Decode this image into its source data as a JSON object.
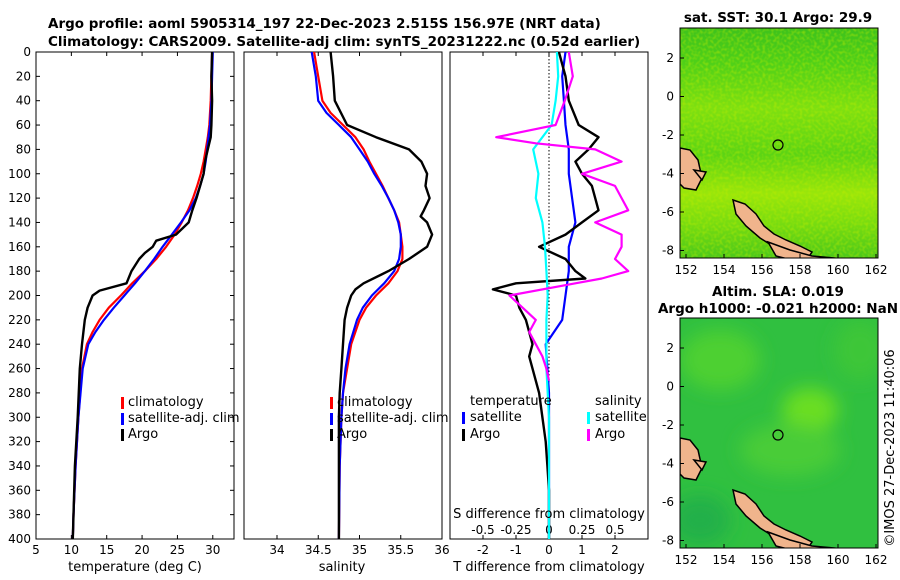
{
  "header": {
    "title_line1": "Argo profile: aoml 5905314_197 22-Dec-2023 2.515S 156.97E (NRT data)",
    "title_line2": "Climatology: CARS2009. Satellite-adj clim: synTS_20231222.nc (0.52d earlier)"
  },
  "colors": {
    "climatology": "#ff0000",
    "satellite": "#0000ff",
    "argo": "#000000",
    "sal_satellite": "#00ffff",
    "sal_argo": "#ff00ff"
  },
  "chart_data": [
    {
      "type": "line",
      "name": "temperature",
      "xlabel": "temperature (deg C)",
      "ylabel": "",
      "xlim": [
        5,
        33
      ],
      "ylim": [
        400,
        0
      ],
      "xticks": [
        "5",
        "10",
        "15",
        "20",
        "25",
        "30"
      ],
      "xtick_values": [
        5,
        10,
        15,
        20,
        25,
        30
      ],
      "yticks": [
        "0",
        "20",
        "40",
        "60",
        "80",
        "100",
        "120",
        "140",
        "160",
        "180",
        "200",
        "220",
        "240",
        "260",
        "280",
        "300",
        "320",
        "340",
        "360",
        "380",
        "400"
      ],
      "ytick_values": [
        0,
        20,
        40,
        60,
        80,
        100,
        120,
        140,
        160,
        180,
        200,
        220,
        240,
        260,
        280,
        300,
        320,
        340,
        360,
        380,
        400
      ],
      "legend": [
        "climatology",
        "satellite-adj. clim",
        "Argo"
      ],
      "series": [
        {
          "name": "climatology",
          "depth": [
            0,
            20,
            40,
            60,
            70,
            80,
            90,
            100,
            110,
            120,
            130,
            140,
            150,
            160,
            170,
            180,
            190,
            200,
            210,
            220,
            230,
            240,
            260,
            300,
            340,
            380,
            400
          ],
          "values": [
            29.9,
            29.8,
            29.7,
            29.5,
            29.3,
            29.0,
            28.7,
            28.3,
            27.8,
            27.2,
            26.5,
            25.6,
            24.6,
            23.4,
            22.0,
            20.4,
            18.6,
            17.0,
            15.3,
            14.0,
            13.0,
            12.2,
            11.5,
            11.0,
            10.6,
            10.3,
            10.2
          ]
        },
        {
          "name": "satellite-adj. clim",
          "depth": [
            0,
            20,
            40,
            60,
            70,
            80,
            90,
            100,
            110,
            120,
            130,
            140,
            150,
            160,
            170,
            180,
            190,
            200,
            210,
            220,
            230,
            240,
            260,
            300,
            340,
            380,
            400
          ],
          "values": [
            30.0,
            29.9,
            29.8,
            29.6,
            29.4,
            29.2,
            29.0,
            28.7,
            28.2,
            27.6,
            26.7,
            25.5,
            24.2,
            22.9,
            21.7,
            20.4,
            19.0,
            17.5,
            16.0,
            14.6,
            13.4,
            12.4,
            11.6,
            11.0,
            10.6,
            10.3,
            10.2
          ]
        },
        {
          "name": "Argo",
          "depth": [
            0,
            20,
            40,
            60,
            70,
            80,
            90,
            100,
            110,
            120,
            130,
            140,
            150,
            155,
            160,
            165,
            170,
            180,
            190,
            196,
            200,
            210,
            220,
            230,
            240,
            260,
            300,
            340,
            380,
            400
          ],
          "values": [
            29.9,
            29.8,
            29.9,
            29.8,
            29.7,
            29.3,
            28.9,
            28.7,
            28.2,
            27.7,
            27.1,
            26.6,
            24.8,
            22.0,
            21.5,
            20.4,
            19.6,
            18.5,
            17.8,
            14.0,
            13.0,
            12.3,
            11.9,
            11.7,
            11.5,
            11.2,
            10.9,
            10.5,
            10.3,
            10.2
          ]
        }
      ]
    },
    {
      "type": "line",
      "name": "salinity",
      "xlabel": "salinity",
      "xlim": [
        33.6,
        36.0
      ],
      "ylim": [
        400,
        0
      ],
      "xticks": [
        "34",
        "34.5",
        "35",
        "35.5",
        "36"
      ],
      "xtick_values": [
        34,
        34.5,
        35,
        35.5,
        36
      ],
      "legend": [
        "climatology",
        "satellite-adj. clim",
        "Argo"
      ],
      "series": [
        {
          "name": "climatology",
          "depth": [
            0,
            20,
            40,
            50,
            60,
            70,
            80,
            90,
            100,
            110,
            120,
            130,
            140,
            150,
            160,
            170,
            180,
            190,
            200,
            210,
            220,
            240,
            260,
            280,
            300,
            340,
            400
          ],
          "values": [
            34.45,
            34.5,
            34.55,
            34.65,
            34.8,
            34.95,
            35.05,
            35.12,
            35.2,
            35.28,
            35.35,
            35.42,
            35.48,
            35.5,
            35.52,
            35.52,
            35.46,
            35.35,
            35.2,
            35.08,
            35.0,
            34.9,
            34.85,
            34.8,
            34.78,
            34.76,
            34.75
          ]
        },
        {
          "name": "satellite-adj. clim",
          "depth": [
            0,
            20,
            40,
            50,
            60,
            70,
            80,
            90,
            100,
            110,
            120,
            130,
            140,
            150,
            160,
            170,
            180,
            190,
            200,
            210,
            220,
            240,
            260,
            280,
            300,
            340,
            400
          ],
          "values": [
            34.42,
            34.47,
            34.5,
            34.6,
            34.75,
            34.9,
            35.0,
            35.1,
            35.18,
            35.27,
            35.35,
            35.42,
            35.47,
            35.5,
            35.5,
            35.48,
            35.42,
            35.3,
            35.15,
            35.04,
            34.97,
            34.88,
            34.83,
            34.8,
            34.78,
            34.76,
            34.75
          ]
        },
        {
          "name": "Argo",
          "depth": [
            0,
            20,
            40,
            60,
            70,
            80,
            90,
            100,
            110,
            120,
            130,
            135,
            140,
            145,
            150,
            160,
            170,
            180,
            190,
            195,
            200,
            210,
            220,
            240,
            260,
            280,
            300,
            340,
            380,
            400
          ],
          "values": [
            34.65,
            34.68,
            34.7,
            34.85,
            35.2,
            35.6,
            35.75,
            35.82,
            35.8,
            35.85,
            35.78,
            35.74,
            35.82,
            35.85,
            35.88,
            35.82,
            35.6,
            35.35,
            35.05,
            34.95,
            34.9,
            34.85,
            34.82,
            34.8,
            34.78,
            34.76,
            34.75,
            34.75,
            34.75,
            34.75
          ]
        }
      ]
    },
    {
      "type": "line",
      "name": "difference",
      "xlabel": "T difference from climatology",
      "xlabel2": "S difference from climatology",
      "xlim": [
        -3,
        3
      ],
      "ylim": [
        400,
        0
      ],
      "xticks": [
        "-2",
        "-1",
        "0",
        "1",
        "2"
      ],
      "xtick_values": [
        -2,
        -1,
        0,
        1,
        2
      ],
      "xticks2": [
        "-0.5",
        "-0.25",
        "0",
        "0.25",
        "0.5"
      ],
      "xtick2_values": [
        -0.5,
        -0.25,
        0,
        0.25,
        0.5
      ],
      "legend_left_title": "temperature",
      "legend_left": [
        "satellite",
        "Argo"
      ],
      "legend_right_title": "salinity",
      "legend_right": [
        "satellite",
        "Argo"
      ],
      "series": [
        {
          "name": "T satellite",
          "depth": [
            0,
            20,
            40,
            60,
            80,
            100,
            120,
            140,
            160,
            180,
            200,
            220,
            240,
            260,
            280,
            300,
            340,
            380,
            400
          ],
          "values": [
            0.5,
            0.4,
            0.45,
            0.5,
            0.6,
            0.6,
            0.7,
            0.8,
            0.6,
            0.6,
            0.5,
            0.4,
            -0.1,
            -0.05,
            0.0,
            0.0,
            0.0,
            0.0,
            0.0
          ]
        },
        {
          "name": "T Argo",
          "depth": [
            0,
            20,
            40,
            60,
            70,
            80,
            90,
            100,
            110,
            120,
            130,
            140,
            150,
            160,
            170,
            180,
            186,
            190,
            195,
            200,
            210,
            220,
            230,
            240,
            250,
            260,
            280,
            300,
            320,
            340,
            360,
            380,
            400
          ],
          "values": [
            0.3,
            0.5,
            0.6,
            0.9,
            1.5,
            1.2,
            0.8,
            1.0,
            1.3,
            1.4,
            1.5,
            1.0,
            0.5,
            -0.3,
            0.5,
            0.8,
            1.1,
            -1.0,
            -1.7,
            -1.0,
            -0.9,
            -0.7,
            -0.6,
            -0.5,
            -0.6,
            -0.5,
            -0.3,
            -0.2,
            -0.1,
            -0.05,
            0.0,
            0.0,
            0.0
          ]
        },
        {
          "name": "S satellite",
          "depth": [
            0,
            20,
            40,
            60,
            80,
            100,
            120,
            140,
            160,
            180,
            200,
            220,
            240,
            260,
            280,
            300,
            320,
            340,
            360,
            380,
            400
          ],
          "values": [
            0.06,
            0.07,
            0.05,
            0.02,
            -0.12,
            -0.08,
            -0.1,
            -0.05,
            -0.03,
            -0.02,
            -0.01,
            -0.02,
            -0.02,
            -0.02,
            -0.01,
            0.0,
            0.0,
            0.0,
            0.0,
            0.0,
            0.0
          ]
        },
        {
          "name": "S Argo",
          "depth": [
            0,
            20,
            40,
            60,
            70,
            75,
            80,
            90,
            100,
            110,
            120,
            130,
            140,
            150,
            160,
            170,
            180,
            186,
            190,
            200,
            210,
            220,
            230,
            240,
            250,
            260,
            270
          ],
          "values": [
            0.15,
            0.18,
            0.12,
            0.05,
            -0.4,
            -0.1,
            0.35,
            0.55,
            0.25,
            0.5,
            0.55,
            0.6,
            0.35,
            0.55,
            0.55,
            0.5,
            0.6,
            0.4,
            0.2,
            -0.3,
            -0.2,
            -0.1,
            -0.15,
            -0.1,
            -0.05,
            -0.02,
            0.0
          ]
        }
      ]
    }
  ],
  "maps": [
    {
      "title": "sat. SST: 30.1 Argo: 29.9",
      "xticks": [
        "152",
        "154",
        "156",
        "158",
        "160",
        "162"
      ],
      "yticks": [
        "2",
        "0",
        "-2",
        "-4",
        "-6",
        "-8"
      ]
    },
    {
      "title_line1": "Altim. SLA: 0.019",
      "title_line2": "Argo h1000: -0.021 h2000: NaN",
      "xticks": [
        "152",
        "154",
        "156",
        "158",
        "160",
        "162"
      ],
      "yticks": [
        "2",
        "0",
        "-2",
        "-4",
        "-6",
        "-8"
      ]
    }
  ],
  "side_label": "©IMOS 27-Dec-2023 11:40:06"
}
